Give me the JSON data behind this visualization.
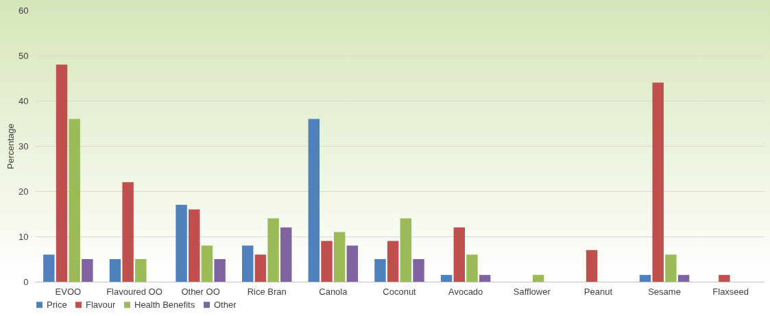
{
  "chart_data": {
    "type": "bar",
    "ylabel": "Percentage",
    "categories": [
      "EVOO",
      "Flavoured OO",
      "Other OO",
      "Rice Bran",
      "Canola",
      "Coconut",
      "Avocado",
      "Safflower",
      "Peanut",
      "Sesame",
      "Flaxseed"
    ],
    "series": [
      {
        "name": "Price",
        "color": "#4f81bd",
        "values": [
          6,
          5,
          17,
          8,
          36,
          5,
          1.5,
          0,
          0,
          1.5,
          0
        ]
      },
      {
        "name": "Flavour",
        "color": "#c0504d",
        "values": [
          48,
          22,
          16,
          6,
          9,
          9,
          12,
          0,
          7,
          44,
          1.5
        ]
      },
      {
        "name": "Health Benefits",
        "color": "#9bbb59",
        "values": [
          36,
          5,
          8,
          14,
          11,
          14,
          6,
          1.5,
          0,
          6,
          0
        ]
      },
      {
        "name": "Other",
        "color": "#8064a2",
        "values": [
          5,
          0,
          5,
          12,
          8,
          5,
          1.5,
          0,
          0,
          1.5,
          0
        ]
      }
    ],
    "ylim": [
      0,
      60
    ],
    "yticks": [
      0,
      10,
      20,
      30,
      40,
      50,
      60
    ],
    "grid": "y",
    "legend": "bottom"
  }
}
